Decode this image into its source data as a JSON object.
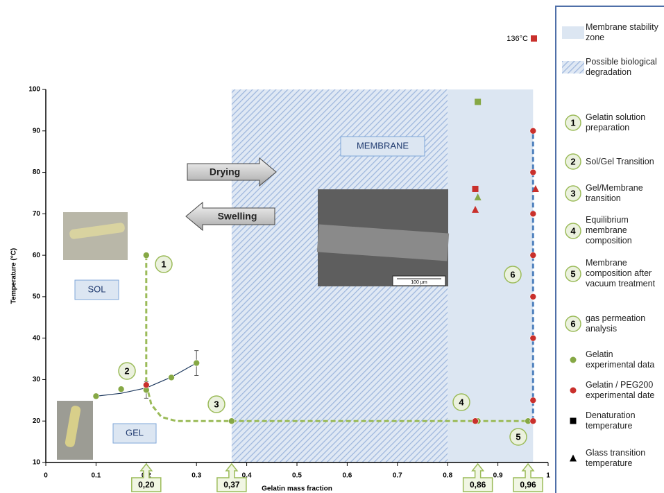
{
  "chart_data": {
    "type": "scatter",
    "xlabel": "Gelatin mass fraction",
    "ylabel": "Temperature (°C)",
    "xlim": [
      0,
      1
    ],
    "ylim": [
      10,
      100
    ],
    "xticks": [
      0,
      0.1,
      0.2,
      0.3,
      0.4,
      0.5,
      0.6,
      0.7,
      0.8,
      0.9,
      1
    ],
    "yticks": [
      10,
      20,
      30,
      40,
      50,
      60,
      70,
      80,
      90,
      100
    ],
    "grid": false,
    "zones": [
      {
        "name": "Membrane stability zone",
        "style": "solid",
        "color": "#dce6f2",
        "x": [
          0.8,
          0.97
        ]
      },
      {
        "name": "Possible biological degradation",
        "style": "hatch",
        "color": "#9db6dd",
        "x": [
          0.37,
          0.8
        ]
      }
    ],
    "series": [
      {
        "name": "Gelatin experimental data",
        "marker": "circle",
        "color": "#86a845",
        "x": [
          0.1,
          0.15,
          0.2,
          0.25,
          0.3,
          0.2,
          0.37,
          0.86,
          0.96
        ],
        "y": [
          26,
          27.7,
          27.5,
          30.5,
          34,
          60,
          20,
          20,
          20
        ],
        "errors": [
          null,
          null,
          2,
          null,
          3,
          null,
          null,
          null,
          null
        ]
      },
      {
        "name": "Gelatin / PEG200 experimental date",
        "marker": "circle",
        "color": "#c9302c",
        "x": [
          0.2,
          0.855,
          0.97,
          0.97,
          0.97,
          0.97,
          0.97,
          0.97,
          0.97,
          0.97
        ],
        "y": [
          28.7,
          20,
          20,
          25,
          40,
          50,
          60,
          70,
          80,
          90
        ]
      },
      {
        "name": "Denaturation temperature",
        "marker": "square",
        "color": "#000000",
        "point_colors": [
          "#86a845",
          "#c9302c"
        ],
        "x": [
          0.86,
          0.855
        ],
        "y": [
          97,
          76
        ]
      },
      {
        "name": "Glass transition temperature",
        "marker": "triangle",
        "color": "#000000",
        "point_colors": [
          "#86a845",
          "#c9302c",
          "#c9302c"
        ],
        "x": [
          0.86,
          0.855,
          0.975
        ],
        "y": [
          74,
          71,
          76
        ]
      }
    ],
    "off_scale_point": {
      "value": 136,
      "label": "136°C",
      "color": "#c9302c"
    },
    "lines": [
      {
        "color": "#9bbb59",
        "x": [
          0.2,
          0.2,
          0.21,
          0.23,
          0.26,
          0.96
        ],
        "y": [
          60,
          29,
          24,
          21,
          20,
          20
        ]
      },
      {
        "color": "#4f81bd",
        "x": [
          0.97,
          0.97
        ],
        "y": [
          20,
          90
        ]
      },
      {
        "color": "#1f3a5f",
        "x": [
          0.1,
          0.15,
          0.2,
          0.25,
          0.3
        ],
        "y": [
          26,
          26.7,
          28,
          30.6,
          34
        ]
      }
    ],
    "x_callouts": [
      {
        "value": 0.2,
        "label": "0,20"
      },
      {
        "value": 0.37,
        "label": "0,37"
      },
      {
        "value": 0.86,
        "label": "0,86"
      },
      {
        "value": 0.96,
        "label": "0,96"
      }
    ],
    "steps": [
      {
        "number": 1,
        "label": "Gelatin solution preparation"
      },
      {
        "number": 2,
        "label": "Sol/Gel Transition"
      },
      {
        "number": 3,
        "label": "Gel/Membrane transition"
      },
      {
        "number": 4,
        "label": "Equilibrium membrane composition"
      },
      {
        "number": 5,
        "label": "Membrane composition after vacuum treatment"
      },
      {
        "number": 6,
        "label": "gas permeation analysis"
      }
    ],
    "region_labels": [
      "SOL",
      "GEL",
      "MEMBRANE"
    ],
    "arrows": [
      "Drying",
      "Swelling"
    ],
    "scale_bar": "100 µm"
  }
}
